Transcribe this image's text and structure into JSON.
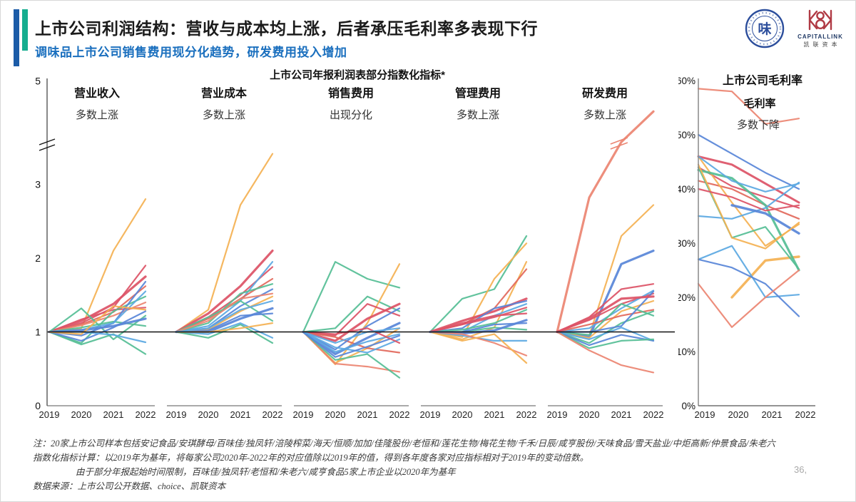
{
  "header": {
    "title": "上市公司利润结构：营收与成本均上涨，后者承压毛利率多表现下行",
    "subtitle": "调味品上市公司销售费用现分化趋势，研发费用投入增加"
  },
  "logos": {
    "seal_glyph": "味",
    "capitallink_name": "CAPITALLINK",
    "capitallink_cn": "凯联资本"
  },
  "page_number": "36,",
  "notes": {
    "line1": "注：20家上市公司样本包括安记食品/安琪酵母/百味佳/独凤轩/涪陵榨菜/海天/恒顺/加加/佳隆股份/老恒和/莲花生物/梅花生物/千禾/日辰/咸亨股份/天味食品/雪天盐业/中炬高新/仲景食品/朱老六",
    "line2": "指数化指标计算：以2019年为基年，将每家公司2020年-2022年的对应值除以2019年的值，得到各年度各家对应指标相对于2019年的变动倍数。",
    "line3": "由于部分年报起始时间限制，百味佳/独凤轩/老恒和/朱老六/咸亨食品5家上市企业以2020年为基年",
    "source": "数据来源：上市公司公开数据、choice、凯联资本"
  },
  "palette": {
    "salmon": "#EB8471",
    "crimson": "#DC5266",
    "red": "#E2685B",
    "orange": "#F4B152",
    "green": "#55BE95",
    "blue": "#5886D8",
    "skyblue": "#5BA8E2"
  },
  "chart_data": [
    {
      "type": "line",
      "title": "上市公司年报利润表部分指数化指标*",
      "x": [
        2019,
        2020,
        2021,
        2022
      ],
      "y_ticks": [
        0,
        1,
        2,
        3,
        5
      ],
      "ylim": [
        0,
        5
      ],
      "axis_break": true,
      "baseline": 1,
      "grid": false,
      "panels": [
        {
          "label": "营业收入",
          "trend": "多数上涨",
          "series": [
            {
              "c": "orange",
              "v": [
                1,
                1.05,
                2.1,
                2.8
              ]
            },
            {
              "c": "crimson",
              "w": 3.2,
              "v": [
                1,
                1.15,
                1.38,
                1.75
              ]
            },
            {
              "c": "crimson",
              "v": [
                1,
                1.12,
                1.33,
                1.9
              ]
            },
            {
              "c": "red",
              "v": [
                1,
                1.1,
                1.27,
                1.62
              ]
            },
            {
              "c": "salmon",
              "v": [
                1,
                1.09,
                1.22,
                1.4
              ]
            },
            {
              "c": "crimson",
              "v": [
                1,
                1.17,
                1.3,
                1.33
              ]
            },
            {
              "c": "green",
              "v": [
                1,
                1.32,
                0.9,
                1.22
              ]
            },
            {
              "c": "green",
              "v": [
                1,
                0.85,
                1.28,
                1.48
              ]
            },
            {
              "c": "green",
              "v": [
                1,
                0.83,
                0.97,
                0.7
              ]
            },
            {
              "c": "green",
              "v": [
                1,
                1.06,
                1.14,
                1.08
              ]
            },
            {
              "c": "blue",
              "v": [
                1,
                0.95,
                1.12,
                1.68
              ]
            },
            {
              "c": "blue",
              "v": [
                1,
                0.88,
                1.06,
                1.28
              ]
            },
            {
              "c": "skyblue",
              "v": [
                1,
                1.0,
                0.96,
                0.86
              ]
            },
            {
              "c": "skyblue",
              "v": [
                1,
                1.03,
                1.12,
                1.55
              ]
            },
            {
              "c": "blue",
              "w": 3.2,
              "v": [
                1,
                1.02,
                1.08,
                1.18
              ]
            },
            {
              "c": "orange",
              "v": [
                1,
                0.97,
                1.35,
                1.3
              ]
            }
          ]
        },
        {
          "label": "营业成本",
          "trend": "多数上涨",
          "series": [
            {
              "c": "orange",
              "v": [
                1,
                1.3,
                2.72,
                3.45
              ]
            },
            {
              "c": "crimson",
              "w": 3.2,
              "v": [
                1,
                1.25,
                1.62,
                2.1
              ]
            },
            {
              "c": "crimson",
              "v": [
                1,
                1.2,
                1.5,
                1.88
              ]
            },
            {
              "c": "skyblue",
              "v": [
                1,
                1.08,
                1.42,
                1.95
              ]
            },
            {
              "c": "red",
              "v": [
                1,
                1.18,
                1.45,
                1.72
              ]
            },
            {
              "c": "blue",
              "v": [
                1,
                1.05,
                1.35,
                1.58
              ]
            },
            {
              "c": "green",
              "v": [
                1,
                1.12,
                1.52,
                1.65
              ]
            },
            {
              "c": "green",
              "v": [
                1,
                1.2,
                1.42,
                1.15
              ]
            },
            {
              "c": "salmon",
              "v": [
                1,
                1.15,
                1.45,
                1.52
              ]
            },
            {
              "c": "orange",
              "v": [
                1,
                1.03,
                1.28,
                1.48
              ]
            },
            {
              "c": "blue",
              "w": 3.2,
              "v": [
                1,
                1.0,
                1.18,
                1.32
              ]
            },
            {
              "c": "skyblue",
              "v": [
                1,
                0.97,
                1.12,
                0.92
              ]
            },
            {
              "c": "green",
              "v": [
                1,
                0.92,
                1.1,
                0.85
              ]
            },
            {
              "c": "blue",
              "v": [
                1,
                1.02,
                1.22,
                1.25
              ]
            },
            {
              "c": "orange",
              "v": [
                1,
                1.0,
                1.05,
                1.12
              ]
            },
            {
              "c": "skyblue",
              "v": [
                1,
                1.05,
                1.3,
                1.42
              ]
            }
          ]
        },
        {
          "label": "销售费用",
          "trend": "出现分化",
          "series": [
            {
              "c": "green",
              "v": [
                1,
                1.95,
                1.72,
                1.6
              ]
            },
            {
              "c": "green",
              "v": [
                1,
                1.05,
                1.48,
                1.28
              ]
            },
            {
              "c": "orange",
              "v": [
                1,
                0.56,
                1.12,
                1.92
              ]
            },
            {
              "c": "orange",
              "v": [
                1,
                0.58,
                0.78,
                1.05
              ]
            },
            {
              "c": "crimson",
              "v": [
                1,
                0.95,
                1.38,
                1.22
              ]
            },
            {
              "c": "crimson",
              "w": 3.2,
              "v": [
                1,
                0.88,
                1.18,
                1.38
              ]
            },
            {
              "c": "red",
              "v": [
                1,
                0.93,
                0.78,
                0.72
              ]
            },
            {
              "c": "salmon",
              "v": [
                1,
                0.57,
                0.53,
                0.46
              ]
            },
            {
              "c": "green",
              "v": [
                1,
                0.62,
                0.7,
                0.38
              ]
            },
            {
              "c": "blue",
              "v": [
                1,
                0.76,
                1.08,
                1.32
              ]
            },
            {
              "c": "blue",
              "w": 3.2,
              "v": [
                1,
                0.7,
                0.92,
                1.12
              ]
            },
            {
              "c": "skyblue",
              "v": [
                1,
                0.73,
                0.87,
                0.97
              ]
            },
            {
              "c": "skyblue",
              "v": [
                1,
                0.79,
                0.72,
                0.9
              ]
            },
            {
              "c": "blue",
              "v": [
                1,
                0.66,
                0.8,
                0.95
              ]
            },
            {
              "c": "crimson",
              "v": [
                1,
                0.97,
                1.05,
                0.85
              ]
            },
            {
              "c": "skyblue",
              "v": [
                1,
                0.85,
                1.0,
                1.05
              ]
            }
          ]
        },
        {
          "label": "管理费用",
          "trend": "多数上涨",
          "series": [
            {
              "c": "green",
              "v": [
                1,
                1.45,
                1.58,
                2.3
              ]
            },
            {
              "c": "orange",
              "v": [
                1,
                0.93,
                1.72,
                2.2
              ]
            },
            {
              "c": "orange",
              "v": [
                1,
                0.9,
                1.06,
                1.95
              ]
            },
            {
              "c": "red",
              "v": [
                1,
                1.1,
                1.32,
                1.85
              ]
            },
            {
              "c": "crimson",
              "w": 3.2,
              "v": [
                1,
                1.15,
                1.28,
                1.45
              ]
            },
            {
              "c": "blue",
              "v": [
                1,
                1.05,
                1.32,
                1.42
              ]
            },
            {
              "c": "skyblue",
              "v": [
                1,
                1.0,
                1.22,
                1.38
              ]
            },
            {
              "c": "green",
              "v": [
                1,
                1.03,
                1.12,
                1.3
              ]
            },
            {
              "c": "crimson",
              "v": [
                1,
                1.1,
                1.2,
                1.33
              ]
            },
            {
              "c": "green",
              "v": [
                1,
                1.0,
                1.06,
                1.03
              ]
            },
            {
              "c": "blue",
              "w": 3.2,
              "v": [
                1,
                0.98,
                1.02,
                1.16
              ]
            },
            {
              "c": "skyblue",
              "v": [
                1,
                0.95,
                0.88,
                0.88
              ]
            },
            {
              "c": "salmon",
              "v": [
                1,
                0.97,
                0.85,
                0.68
              ]
            },
            {
              "c": "orange",
              "v": [
                1,
                0.88,
                0.97,
                0.58
              ]
            },
            {
              "c": "crimson",
              "v": [
                1,
                1.12,
                1.22,
                1.25
              ]
            },
            {
              "c": "blue",
              "v": [
                1,
                1.0,
                1.1,
                1.12
              ]
            }
          ]
        },
        {
          "label": "研发费用",
          "trend": "多数上涨",
          "series": [
            {
              "c": "salmon",
              "w": 3.2,
              "v": [
                1,
                2.82,
                3.7,
                4.35
              ],
              "br": true
            },
            {
              "c": "orange",
              "v": [
                1,
                0.95,
                2.3,
                2.72
              ]
            },
            {
              "c": "blue",
              "w": 3.2,
              "v": [
                1,
                0.93,
                1.92,
                2.1
              ]
            },
            {
              "c": "crimson",
              "v": [
                1,
                1.2,
                1.58,
                1.65
              ]
            },
            {
              "c": "crimson",
              "v": [
                1,
                1.16,
                1.38,
                1.52
              ]
            },
            {
              "c": "skyblue",
              "v": [
                1,
                1.05,
                1.32,
                1.56
              ]
            },
            {
              "c": "orange",
              "v": [
                1,
                0.92,
                1.28,
                1.42
              ]
            },
            {
              "c": "red",
              "v": [
                1,
                1.1,
                1.22,
                1.3
              ]
            },
            {
              "c": "green",
              "v": [
                1,
                0.96,
                1.38,
                1.22
              ]
            },
            {
              "c": "green",
              "v": [
                1,
                0.85,
                1.12,
                1.28
              ]
            },
            {
              "c": "skyblue",
              "v": [
                1,
                0.9,
                1.06,
                0.88
              ]
            },
            {
              "c": "blue",
              "v": [
                1,
                0.82,
                0.96,
                0.88
              ]
            },
            {
              "c": "green",
              "v": [
                1,
                0.78,
                0.88,
                0.9
              ]
            },
            {
              "c": "salmon",
              "v": [
                1,
                0.75,
                0.55,
                0.45
              ]
            },
            {
              "c": "blue",
              "v": [
                1,
                1.0,
                1.08,
                1.55
              ]
            },
            {
              "c": "crimson",
              "w": 3.2,
              "v": [
                1,
                1.18,
                1.45,
                1.48
              ]
            }
          ]
        }
      ]
    },
    {
      "type": "line",
      "title": "上市公司毛利率",
      "subtitle": "毛利率",
      "trend": "多数下降",
      "x": [
        2019,
        2020,
        2021,
        2022
      ],
      "y_ticks": [
        0,
        10,
        20,
        30,
        40,
        50,
        60
      ],
      "y_tick_suffix": "%",
      "ylim": [
        0,
        60
      ],
      "grid": false,
      "series": [
        {
          "c": "salmon",
          "v": [
            58.5,
            58,
            52,
            53
          ]
        },
        {
          "c": "blue",
          "v": [
            50,
            46.5,
            43,
            40
          ]
        },
        {
          "c": "crimson",
          "w": 3,
          "v": [
            46,
            44.5,
            41,
            37.5
          ]
        },
        {
          "c": "crimson",
          "v": [
            44,
            40.5,
            38.5,
            36.5
          ]
        },
        {
          "c": "red",
          "v": [
            41.5,
            40,
            37,
            34.5
          ]
        },
        {
          "c": "orange",
          "v": [
            46,
            37.5,
            29.5,
            33.5
          ]
        },
        {
          "c": "orange",
          "w": 3.4,
          "v": [
            null,
            20,
            26.8,
            27.5
          ]
        },
        {
          "c": "green",
          "w": 3.2,
          "v": [
            43.5,
            42,
            37,
            25
          ]
        },
        {
          "c": "green",
          "v": [
            44,
            31,
            33,
            25.2
          ]
        },
        {
          "c": "skyblue",
          "v": [
            35,
            34.5,
            36.5,
            41.2
          ]
        },
        {
          "c": "skyblue",
          "v": [
            27,
            29.5,
            20,
            20.5
          ]
        },
        {
          "c": "blue",
          "v": [
            27,
            25.5,
            22.5,
            16.5
          ]
        },
        {
          "c": "salmon",
          "v": [
            22.5,
            14.5,
            20,
            25
          ]
        },
        {
          "c": "blue",
          "w": 3.4,
          "v": [
            null,
            37,
            35.5,
            31.8
          ]
        },
        {
          "c": "orange",
          "v": [
            44.5,
            31,
            29,
            33.8
          ]
        },
        {
          "c": "skyblue",
          "v": [
            46,
            41.5,
            39.5,
            41
          ]
        },
        {
          "c": "crimson",
          "v": [
            40,
            38.5,
            36,
            37
          ]
        }
      ]
    }
  ]
}
